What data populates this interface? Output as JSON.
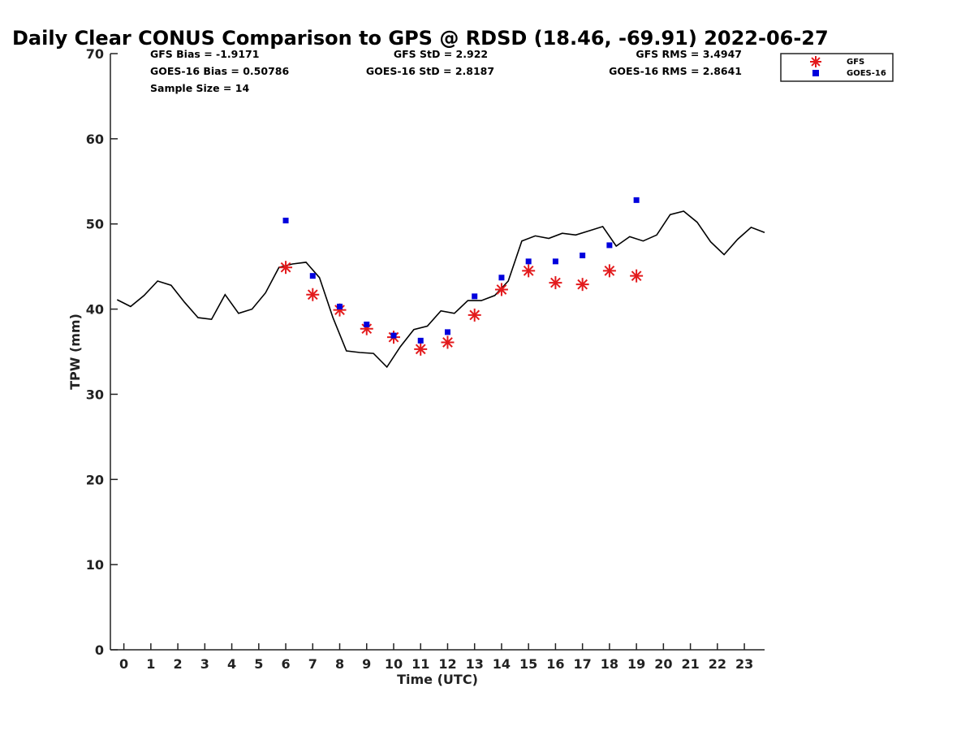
{
  "chart_data": {
    "type": "scatter",
    "title": "Daily Clear CONUS Comparison to GPS @ RDSD (18.46, -69.91) 2022-06-27",
    "xlabel": "Time (UTC)",
    "ylabel": "TPW (mm)",
    "xlim": [
      -0.5,
      23.75
    ],
    "ylim": [
      0,
      70
    ],
    "x_ticks": [
      0,
      1,
      2,
      3,
      4,
      5,
      6,
      7,
      8,
      9,
      10,
      11,
      12,
      13,
      14,
      15,
      16,
      17,
      18,
      19,
      20,
      21,
      22,
      23
    ],
    "y_ticks": [
      0,
      10,
      20,
      30,
      40,
      50,
      60,
      70
    ],
    "stats": {
      "gfs_bias": "GFS Bias = -1.9171",
      "goes_bias": "GOES-16 Bias = 0.50786",
      "sample_size": "Sample Size = 14",
      "gfs_std": "GFS StD = 2.922",
      "goes_std": "GOES-16 StD = 2.8187",
      "gfs_rms": "GFS RMS = 3.4947",
      "goes_rms": "GOES-16 RMS = 2.8641"
    },
    "legend": {
      "position": "top-right, outside plot",
      "entries": [
        "GFS",
        "GOES-16"
      ]
    },
    "series": [
      {
        "type": "line",
        "color": "#000000",
        "x": [
          -0.25,
          0.25,
          0.75,
          1.25,
          1.75,
          2.25,
          2.75,
          3.25,
          3.75,
          4.25,
          4.75,
          5.25,
          5.75,
          6.25,
          6.75,
          7.25,
          7.75,
          8.25,
          8.75,
          9.25,
          9.75,
          10.25,
          10.75,
          11.25,
          11.75,
          12.25,
          12.75,
          13.25,
          13.75,
          14.25,
          14.75,
          15.25,
          15.75,
          16.25,
          16.75,
          17.25,
          17.75,
          18.25,
          18.75,
          19.25,
          19.75,
          20.25,
          20.75,
          21.25,
          21.75,
          22.25,
          22.75,
          23.25,
          23.75
        ],
        "y": [
          41.1,
          40.3,
          41.6,
          43.3,
          42.8,
          40.8,
          39.0,
          38.8,
          41.7,
          39.5,
          40.0,
          41.9,
          44.9,
          45.3,
          45.5,
          43.7,
          39.0,
          35.1,
          34.9,
          34.8,
          33.2,
          35.6,
          37.6,
          38.0,
          39.8,
          39.5,
          41.0,
          41.0,
          41.6,
          43.3,
          48.0,
          48.6,
          48.3,
          48.9,
          48.7,
          49.2,
          49.7,
          47.4,
          48.5,
          48.0,
          48.7,
          51.1,
          51.5,
          50.2,
          47.9,
          46.4,
          48.2,
          49.6,
          49.0
        ]
      },
      {
        "name": "GFS",
        "type": "scatter",
        "marker": "asterisk",
        "color": "#e31a1c",
        "x": [
          6,
          7,
          8,
          9,
          10,
          11,
          12,
          13,
          14,
          15,
          16,
          17,
          18,
          19
        ],
        "y": [
          44.9,
          41.7,
          39.9,
          37.7,
          36.7,
          35.3,
          36.1,
          39.3,
          42.3,
          44.5,
          43.1,
          42.9,
          44.5,
          43.9
        ]
      },
      {
        "name": "GOES-16",
        "type": "scatter",
        "marker": "square",
        "color": "#0000dd",
        "x": [
          6,
          7,
          8,
          9,
          10,
          11,
          12,
          13,
          14,
          15,
          16,
          17,
          18,
          19
        ],
        "y": [
          50.4,
          43.9,
          40.3,
          38.2,
          36.9,
          36.3,
          37.3,
          41.5,
          43.7,
          45.6,
          45.6,
          46.3,
          47.5,
          52.8
        ]
      }
    ]
  }
}
